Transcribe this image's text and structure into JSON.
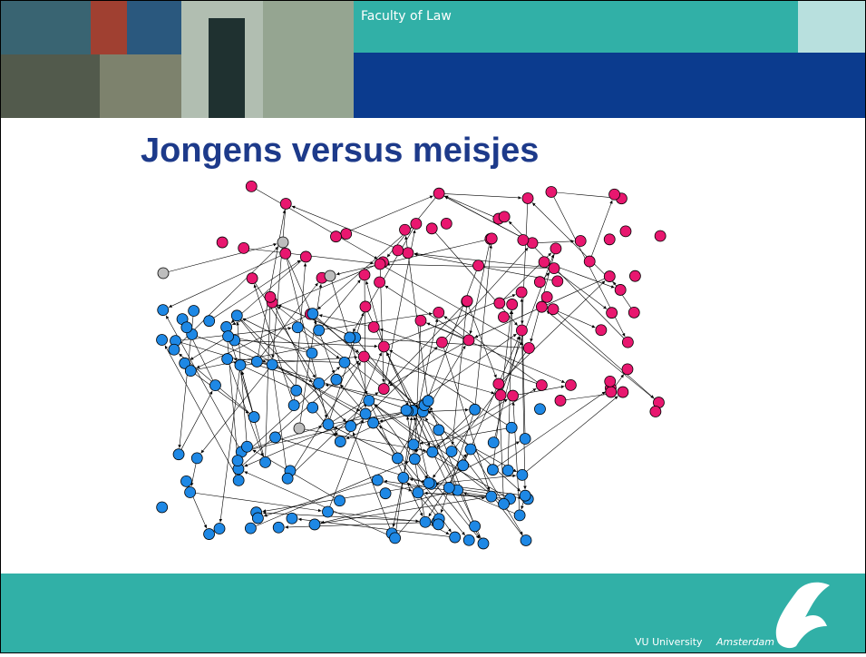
{
  "header": {
    "faculty": "Faculty of Law"
  },
  "title": "Jongens versus meisjes",
  "footer": {
    "university": "VU University",
    "city": "Amsterdam"
  }
}
